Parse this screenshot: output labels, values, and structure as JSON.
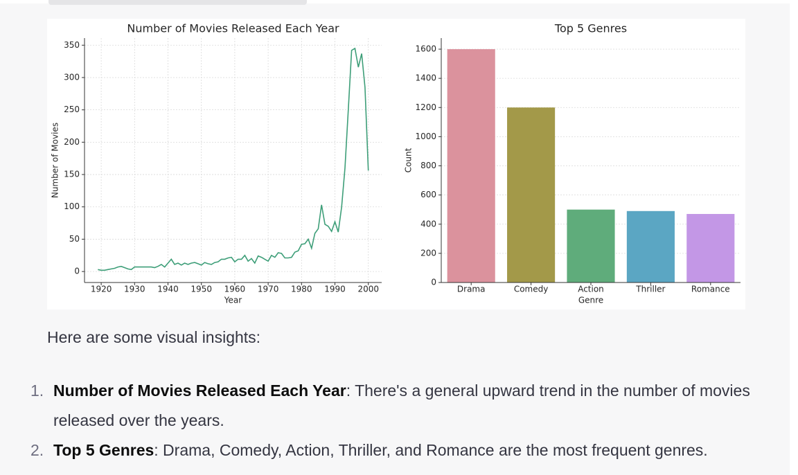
{
  "chart_data": [
    {
      "type": "line",
      "title": "Number of Movies Released Each Year",
      "xlabel": "Year",
      "ylabel": "Number of Movies",
      "x": [
        1919,
        1920,
        1921,
        1922,
        1923,
        1924,
        1925,
        1926,
        1927,
        1928,
        1929,
        1930,
        1931,
        1932,
        1933,
        1934,
        1935,
        1936,
        1937,
        1938,
        1939,
        1940,
        1941,
        1942,
        1943,
        1944,
        1945,
        1946,
        1947,
        1948,
        1949,
        1950,
        1951,
        1952,
        1953,
        1954,
        1955,
        1956,
        1957,
        1958,
        1959,
        1960,
        1961,
        1962,
        1963,
        1964,
        1965,
        1966,
        1967,
        1968,
        1969,
        1970,
        1971,
        1972,
        1973,
        1974,
        1975,
        1976,
        1977,
        1978,
        1979,
        1980,
        1981,
        1982,
        1983,
        1984,
        1985,
        1986,
        1987,
        1988,
        1989,
        1990,
        1991,
        1992,
        1993,
        1994,
        1995,
        1996,
        1997,
        1998,
        1999,
        2000
      ],
      "values": [
        3,
        2,
        2,
        3,
        4,
        5,
        7,
        8,
        6,
        4,
        3,
        7,
        7,
        7,
        7,
        7,
        7,
        6,
        8,
        11,
        7,
        13,
        19,
        11,
        13,
        10,
        13,
        11,
        13,
        14,
        12,
        10,
        14,
        12,
        11,
        14,
        15,
        19,
        19,
        21,
        22,
        15,
        19,
        19,
        25,
        16,
        20,
        13,
        24,
        22,
        19,
        16,
        25,
        22,
        29,
        28,
        21,
        21,
        22,
        30,
        32,
        42,
        43,
        50,
        36,
        59,
        66,
        103,
        73,
        70,
        62,
        77,
        61,
        100,
        160,
        250,
        342,
        345,
        316,
        337,
        285,
        156
      ],
      "color": "#3d9e78",
      "xlim": [
        1915,
        2004
      ],
      "ylim": [
        -17,
        361
      ],
      "xticks": [
        1920,
        1930,
        1940,
        1950,
        1960,
        1970,
        1980,
        1990,
        2000
      ],
      "yticks": [
        0,
        50,
        100,
        150,
        200,
        250,
        300,
        350
      ],
      "grid": true
    },
    {
      "type": "bar",
      "title": "Top 5 Genres",
      "xlabel": "Genre",
      "ylabel": "Count",
      "categories": [
        "Drama",
        "Comedy",
        "Action",
        "Thriller",
        "Romance"
      ],
      "values": [
        1600,
        1200,
        500,
        490,
        470
      ],
      "colors": [
        "#db929d",
        "#a39949",
        "#5fac7b",
        "#5ba6c3",
        "#c397e6"
      ],
      "ylim": [
        0,
        1676
      ],
      "yticks": [
        0,
        200,
        400,
        600,
        800,
        1000,
        1200,
        1400,
        1600
      ],
      "grid": true
    }
  ],
  "text": {
    "intro": "Here are some visual insights:",
    "items": [
      {
        "marker": "1.",
        "title": "Number of Movies Released Each Year",
        "body": ": There's a general upward trend in the number of movies released over the years."
      },
      {
        "marker": "2.",
        "title": "Top 5 Genres",
        "body": ": Drama, Comedy, Action, Thriller, and Romance are the most frequent genres."
      }
    ]
  }
}
